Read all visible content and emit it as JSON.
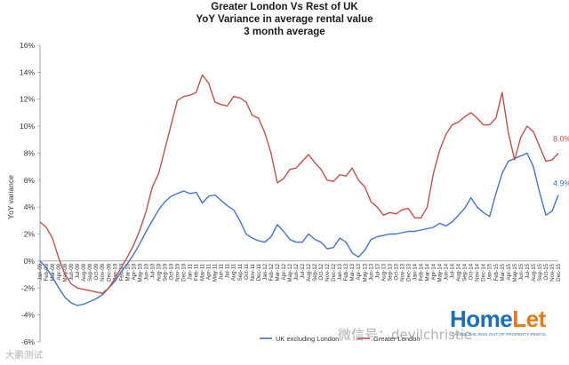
{
  "chart_data": {
    "type": "line",
    "title": [
      "Greater London Vs Rest of UK",
      "YoY Variance in average rental value",
      "3 month average"
    ],
    "ylabel": "YoY variance",
    "ylim": [
      -6,
      16
    ],
    "yticks": [
      "-6%",
      "-4%",
      "-2%",
      "0%",
      "2%",
      "4%",
      "6%",
      "8%",
      "10%",
      "12%",
      "14%",
      "16%"
    ],
    "grid": false,
    "legend_position": "bottom",
    "x": [
      "Jan-09",
      "Feb-09",
      "Mar-09",
      "Apr-09",
      "May-09",
      "Jun-09",
      "Jul-09",
      "Aug-09",
      "Sep-09",
      "Oct-09",
      "Nov-09",
      "Dec-09",
      "Jan-10",
      "Feb-10",
      "Mar-10",
      "Apr-10",
      "May-10",
      "Jun-10",
      "Jul-10",
      "Aug-10",
      "Sep-10",
      "Oct-10",
      "Nov-10",
      "Dec-10",
      "Jan-11",
      "Feb-11",
      "Mar-11",
      "Apr-11",
      "May-11",
      "Jun-11",
      "Jul-11",
      "Aug-11",
      "Sep-11",
      "Oct-11",
      "Nov-11",
      "Dec-11",
      "Jan-12",
      "Feb-12",
      "Mar-12",
      "Apr-12",
      "May-12",
      "Jun-12",
      "Jul-12",
      "Aug-12",
      "Sep-12",
      "Oct-12",
      "Nov-12",
      "Dec-12",
      "Jan-13",
      "Feb-13",
      "Mar-13",
      "Apr-13",
      "May-13",
      "Jun-13",
      "Jul-13",
      "Aug-13",
      "Sep-13",
      "Oct-13",
      "Nov-13",
      "Dec-13",
      "Jan-14",
      "Feb-14",
      "Mar-14",
      "Apr-14",
      "May-14",
      "Jun-14",
      "Jul-14",
      "Aug-14",
      "Sep-14",
      "Oct-14",
      "Nov-14",
      "Dec-14",
      "Jan-15",
      "Feb-15",
      "Mar-15",
      "Apr-15",
      "May-15",
      "Jun-15",
      "Jul-15",
      "Aug-15",
      "Sep-15",
      "Oct-15",
      "Nov-15",
      "Dec-15"
    ],
    "series": [
      {
        "name": "UK excluding London",
        "color": "#4472c4",
        "values": [
          0.0,
          -0.5,
          -1.2,
          -2.0,
          -2.7,
          -3.1,
          -3.3,
          -3.2,
          -3.0,
          -2.8,
          -2.5,
          -2.0,
          -1.5,
          -0.8,
          -0.2,
          0.5,
          1.3,
          2.2,
          3.0,
          3.8,
          4.4,
          4.8,
          5.0,
          5.2,
          5.0,
          5.1,
          4.3,
          4.8,
          4.9,
          4.5,
          4.1,
          3.8,
          3.0,
          2.0,
          1.7,
          1.5,
          1.4,
          1.8,
          2.7,
          2.2,
          1.6,
          1.4,
          1.4,
          2.0,
          1.6,
          1.4,
          0.9,
          1.0,
          1.7,
          1.4,
          0.6,
          0.3,
          0.8,
          1.6,
          1.8,
          1.9,
          2.0,
          2.0,
          2.1,
          2.2,
          2.2,
          2.3,
          2.4,
          2.5,
          2.8,
          2.6,
          2.9,
          3.4,
          3.9,
          4.7,
          4.0,
          3.6,
          3.3,
          5.0,
          6.5,
          7.4,
          7.6,
          7.8,
          8.0,
          7.0,
          5.1,
          3.4,
          3.7,
          4.9
        ]
      },
      {
        "name": "Greater London",
        "color": "#c0504d",
        "values": [
          2.9,
          2.5,
          1.7,
          0.2,
          -1.0,
          -1.7,
          -2.0,
          -2.1,
          -2.2,
          -2.3,
          -2.4,
          -2.0,
          -1.3,
          -0.5,
          0.3,
          1.2,
          2.3,
          3.7,
          5.5,
          6.5,
          8.3,
          10.1,
          11.9,
          12.2,
          12.3,
          12.5,
          13.8,
          13.2,
          11.8,
          11.6,
          11.5,
          12.2,
          12.1,
          11.8,
          10.8,
          10.6,
          9.5,
          8.0,
          5.8,
          6.1,
          6.8,
          6.9,
          7.4,
          7.9,
          7.3,
          6.8,
          6.0,
          5.9,
          6.4,
          6.3,
          6.9,
          6.0,
          5.5,
          4.4,
          4.0,
          3.4,
          3.6,
          3.5,
          3.8,
          3.9,
          3.2,
          3.2,
          4.0,
          6.5,
          8.2,
          9.4,
          10.1,
          10.3,
          10.7,
          11.0,
          10.6,
          10.1,
          10.1,
          10.6,
          12.5,
          9.5,
          7.5,
          9.2,
          10.0,
          9.6,
          8.5,
          7.4,
          7.5,
          8.0
        ]
      }
    ],
    "end_labels": [
      {
        "series": "Greater London",
        "text": "8.0%"
      },
      {
        "series": "UK excluding London",
        "text": "4.9%"
      }
    ]
  },
  "logo": {
    "home": "Home",
    "let": "Let",
    "tagline": "TAKING THE RISK OUT OF PROPERTY RENTAL"
  },
  "watermarks": {
    "wechat": "微信号：devilchristie",
    "weibo": "大鹏测试"
  }
}
